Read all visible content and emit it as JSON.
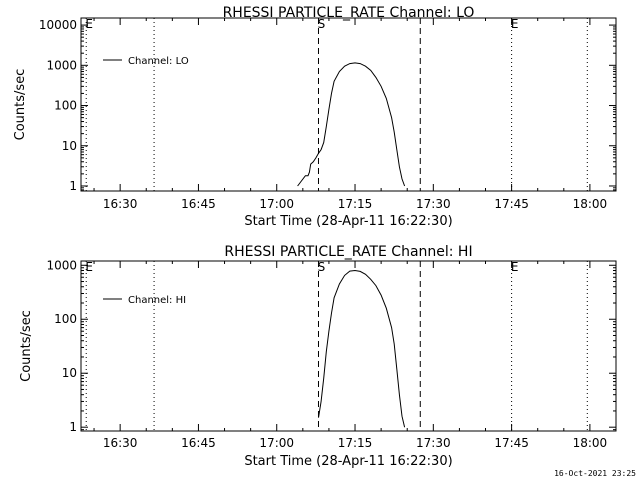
{
  "timestamp": "16-Oct-2021 23:25",
  "chart_data": [
    {
      "type": "line",
      "title": "RHESSI PARTICLE_RATE Channel: LO",
      "xlabel": "Start Time (28-Apr-11 16:22:30)",
      "ylabel": "Counts/sec",
      "x_unit": "hh:mm",
      "xlim": [
        "16:22:30",
        "18:05:00"
      ],
      "xticks": [
        "16:30",
        "16:45",
        "17:00",
        "17:15",
        "17:30",
        "17:45",
        "18:00"
      ],
      "yscale": "log",
      "ylim": [
        0.75,
        15000
      ],
      "yticks": [
        "1",
        "10",
        "100",
        "1000",
        "10000"
      ],
      "legend": {
        "entry": "Channel: LO",
        "location": "top-left"
      },
      "markers": [
        {
          "time": "16:23:30",
          "style": "dotted",
          "label": "E"
        },
        {
          "time": "16:36:30",
          "style": "dotted",
          "label": ""
        },
        {
          "time": "17:08:00",
          "style": "dashed",
          "label": "S"
        },
        {
          "time": "17:27:30",
          "style": "dashed",
          "label": ""
        },
        {
          "time": "17:45:00",
          "style": "dotted",
          "label": "E"
        },
        {
          "time": "17:59:30",
          "style": "dotted",
          "label": ""
        }
      ],
      "series": [
        {
          "name": "Channel: LO",
          "x": [
            "17:04:00",
            "17:05:30",
            "17:06:00",
            "17:06:15",
            "17:06:30",
            "17:07:00",
            "17:07:30",
            "17:08:00",
            "17:08:30",
            "17:09:00",
            "17:09:30",
            "17:10:00",
            "17:10:30",
            "17:11:00",
            "17:12:00",
            "17:13:00",
            "17:14:00",
            "17:15:00",
            "17:16:00",
            "17:17:00",
            "17:18:00",
            "17:19:00",
            "17:20:00",
            "17:21:00",
            "17:22:00",
            "17:22:30",
            "17:23:00",
            "17:23:30",
            "17:24:00",
            "17:24:30"
          ],
          "y": [
            1,
            1.8,
            1.8,
            2.2,
            3.5,
            4,
            5,
            6.5,
            8,
            12,
            30,
            80,
            200,
            400,
            700,
            950,
            1100,
            1150,
            1100,
            950,
            750,
            500,
            300,
            150,
            50,
            22,
            8,
            3,
            1.5,
            1
          ]
        }
      ]
    },
    {
      "type": "line",
      "title": "RHESSI PARTICLE_RATE Channel: HI",
      "xlabel": "Start Time (28-Apr-11 16:22:30)",
      "ylabel": "Counts/sec",
      "x_unit": "hh:mm",
      "xlim": [
        "16:22:30",
        "18:05:00"
      ],
      "xticks": [
        "16:30",
        "16:45",
        "17:00",
        "17:15",
        "17:30",
        "17:45",
        "18:00"
      ],
      "yscale": "log",
      "ylim": [
        0.85,
        1200
      ],
      "yticks": [
        "1",
        "10",
        "100",
        "1000"
      ],
      "legend": {
        "entry": "Channel: HI",
        "location": "top-left"
      },
      "markers": [
        {
          "time": "16:23:30",
          "style": "dotted",
          "label": "E"
        },
        {
          "time": "16:36:30",
          "style": "dotted",
          "label": ""
        },
        {
          "time": "17:08:00",
          "style": "dashed",
          "label": "S"
        },
        {
          "time": "17:27:30",
          "style": "dashed",
          "label": ""
        },
        {
          "time": "17:45:00",
          "style": "dotted",
          "label": "E"
        },
        {
          "time": "17:59:30",
          "style": "dotted",
          "label": ""
        }
      ],
      "series": [
        {
          "name": "Channel: HI",
          "x": [
            "17:08:00",
            "17:08:30",
            "17:09:00",
            "17:09:30",
            "17:10:00",
            "17:10:30",
            "17:11:00",
            "17:12:00",
            "17:13:00",
            "17:14:00",
            "17:15:00",
            "17:16:00",
            "17:17:00",
            "17:18:00",
            "17:19:00",
            "17:20:00",
            "17:21:00",
            "17:22:00",
            "17:22:30",
            "17:23:00",
            "17:23:30",
            "17:24:00",
            "17:24:30"
          ],
          "y": [
            1.5,
            3,
            8,
            25,
            60,
            130,
            250,
            450,
            650,
            780,
            800,
            770,
            680,
            550,
            420,
            280,
            160,
            70,
            35,
            12,
            4,
            1.6,
            1
          ]
        }
      ]
    }
  ]
}
